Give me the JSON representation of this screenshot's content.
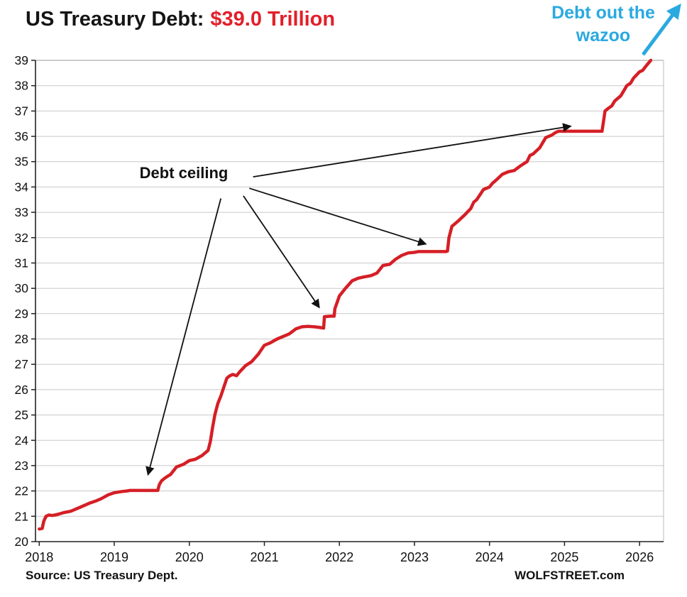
{
  "page": {
    "title_black": "US Treasury Debt:",
    "title_red": "$39.0 Trillion",
    "wazoo_line1": "Debt out the",
    "wazoo_line2": "wazoo",
    "source": "Source: US Treasury Dept.",
    "site": "WOLFSTREET.com"
  },
  "colors": {
    "line": "#d51f26",
    "title_red": "#e1202a",
    "accent_cyan": "#2aa9e0",
    "grid": "#c8c8c8",
    "text": "#111111"
  },
  "chart_data": {
    "type": "line",
    "title": "US Treasury Debt: $39.0 Trillion",
    "series_name": "US Treasury debt ($ trillions)",
    "xlabel": "",
    "ylabel": "",
    "xlim": [
      2017.95,
      2026.32
    ],
    "ylim": [
      20,
      39
    ],
    "xticks": [
      2018,
      2019,
      2020,
      2021,
      2022,
      2023,
      2024,
      2025,
      2026
    ],
    "yticks": [
      20,
      21,
      22,
      23,
      24,
      25,
      26,
      27,
      28,
      29,
      30,
      31,
      32,
      33,
      34,
      35,
      36,
      37,
      38,
      39
    ],
    "grid": "horizontal",
    "line_color": "#d51f26",
    "x": [
      2018.0,
      2018.04,
      2018.06,
      2018.09,
      2018.13,
      2018.17,
      2018.21,
      2018.25,
      2018.33,
      2018.42,
      2018.5,
      2018.58,
      2018.67,
      2018.75,
      2018.83,
      2018.92,
      2019.0,
      2019.08,
      2019.17,
      2019.21,
      2019.25,
      2019.4,
      2019.58,
      2019.6,
      2019.63,
      2019.67,
      2019.71,
      2019.75,
      2019.83,
      2019.92,
      2020.0,
      2020.08,
      2020.17,
      2020.25,
      2020.28,
      2020.31,
      2020.34,
      2020.38,
      2020.42,
      2020.46,
      2020.5,
      2020.54,
      2020.58,
      2020.63,
      2020.67,
      2020.75,
      2020.83,
      2020.92,
      2021.0,
      2021.08,
      2021.17,
      2021.25,
      2021.33,
      2021.42,
      2021.5,
      2021.58,
      2021.67,
      2021.75,
      2021.79,
      2021.8,
      2021.88,
      2021.93,
      2021.94,
      2021.97,
      2022.0,
      2022.04,
      2022.08,
      2022.17,
      2022.25,
      2022.33,
      2022.42,
      2022.5,
      2022.58,
      2022.67,
      2022.75,
      2022.83,
      2022.92,
      2023.0,
      2023.05,
      2023.15,
      2023.3,
      2023.42,
      2023.44,
      2023.46,
      2023.5,
      2023.54,
      2023.58,
      2023.67,
      2023.75,
      2023.79,
      2023.83,
      2023.92,
      2024.0,
      2024.04,
      2024.08,
      2024.17,
      2024.25,
      2024.33,
      2024.42,
      2024.5,
      2024.54,
      2024.58,
      2024.67,
      2024.75,
      2024.83,
      2024.88,
      2024.92,
      2025.0,
      2025.1,
      2025.25,
      2025.4,
      2025.5,
      2025.52,
      2025.54,
      2025.58,
      2025.63,
      2025.67,
      2025.75,
      2025.83,
      2025.88,
      2025.92,
      2026.0,
      2026.04,
      2026.08,
      2026.12,
      2026.15
    ],
    "y": [
      20.5,
      20.52,
      20.8,
      21.0,
      21.05,
      21.03,
      21.05,
      21.08,
      21.15,
      21.2,
      21.3,
      21.4,
      21.52,
      21.6,
      21.7,
      21.85,
      21.93,
      21.97,
      22.0,
      22.02,
      22.02,
      22.02,
      22.02,
      22.25,
      22.4,
      22.5,
      22.58,
      22.65,
      22.95,
      23.05,
      23.2,
      23.25,
      23.4,
      23.6,
      23.95,
      24.5,
      25.0,
      25.45,
      25.75,
      26.1,
      26.45,
      26.55,
      26.6,
      26.55,
      26.7,
      26.95,
      27.1,
      27.4,
      27.75,
      27.85,
      28.0,
      28.1,
      28.2,
      28.4,
      28.48,
      28.5,
      28.48,
      28.45,
      28.43,
      28.88,
      28.9,
      28.9,
      29.2,
      29.45,
      29.7,
      29.85,
      30.0,
      30.3,
      30.4,
      30.45,
      30.5,
      30.6,
      30.9,
      30.95,
      31.15,
      31.3,
      31.4,
      31.42,
      31.45,
      31.45,
      31.45,
      31.45,
      31.47,
      32.0,
      32.45,
      32.55,
      32.65,
      32.9,
      33.15,
      33.4,
      33.5,
      33.9,
      34.0,
      34.15,
      34.25,
      34.5,
      34.6,
      34.65,
      34.85,
      35.0,
      35.25,
      35.3,
      35.55,
      35.95,
      36.05,
      36.15,
      36.2,
      36.2,
      36.2,
      36.2,
      36.2,
      36.2,
      36.6,
      37.0,
      37.1,
      37.2,
      37.4,
      37.6,
      38.0,
      38.1,
      38.3,
      38.55,
      38.6,
      38.75,
      38.9,
      39.0
    ],
    "annotations": {
      "ceiling": {
        "text": "Debt ceiling",
        "label_pos": [
          2019.93,
          34.55
        ],
        "arrow_origins": [
          [
            2020.42,
            33.55
          ],
          [
            2020.72,
            33.65
          ],
          [
            2020.8,
            33.95
          ],
          [
            2020.85,
            34.4
          ]
        ],
        "arrow_targets": [
          [
            2019.45,
            22.65
          ],
          [
            2021.73,
            29.25
          ],
          [
            2023.15,
            31.75
          ],
          [
            2025.08,
            36.4
          ]
        ]
      },
      "wazoo": {
        "text": "Debt out the wazoo",
        "color": "#2aa9e0"
      }
    }
  }
}
